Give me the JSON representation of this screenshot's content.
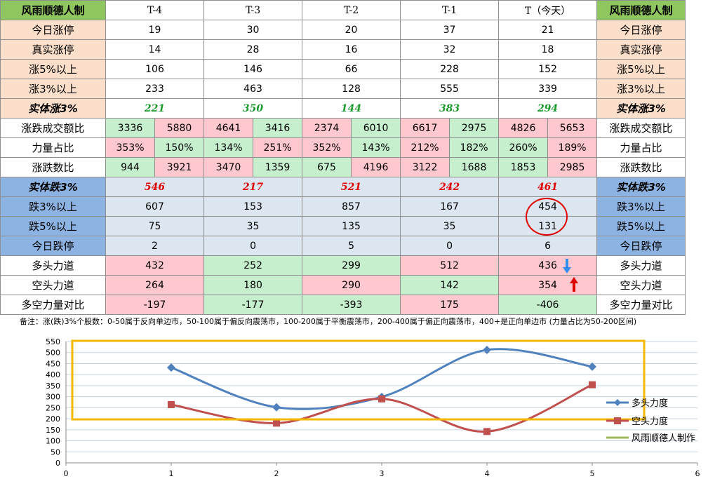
{
  "table": {
    "brand_label": "风雨顺德人制",
    "columns": [
      "T-4",
      "T-3",
      "T-2",
      "T-1",
      "T（今天）"
    ],
    "rows": {
      "limit_up": {
        "label": "今日涨停",
        "values": [
          "19",
          "30",
          "20",
          "37",
          "21"
        ]
      },
      "real_limit_up": {
        "label": "真实涨停",
        "values": [
          "14",
          "28",
          "16",
          "32",
          "18"
        ]
      },
      "up5": {
        "label": "涨5%以上",
        "values": [
          "106",
          "146",
          "66",
          "228",
          "152"
        ]
      },
      "up3": {
        "label": "涨3%以上",
        "values": [
          "233",
          "463",
          "128",
          "555",
          "339"
        ]
      },
      "body_up3": {
        "label": "实体涨3%",
        "values": [
          "221",
          "350",
          "144",
          "383",
          "294"
        ]
      },
      "turnover": {
        "label": "涨跌成交额比",
        "pairs": [
          [
            "3336",
            "5880"
          ],
          [
            "4641",
            "3416"
          ],
          [
            "2374",
            "6010"
          ],
          [
            "6617",
            "2975"
          ],
          [
            "4826",
            "5653"
          ]
        ]
      },
      "power": {
        "label": "力量占比",
        "pairs": [
          [
            "353%",
            "150%"
          ],
          [
            "134%",
            "251%"
          ],
          [
            "352%",
            "143%"
          ],
          [
            "212%",
            "182%"
          ],
          [
            "260%",
            "189%"
          ]
        ]
      },
      "count": {
        "label": "涨跌数比",
        "pairs": [
          [
            "944",
            "3921"
          ],
          [
            "3470",
            "1359"
          ],
          [
            "675",
            "4196"
          ],
          [
            "3122",
            "1688"
          ],
          [
            "1853",
            "2985"
          ]
        ]
      },
      "body_down3": {
        "label": "实体跌3%",
        "values": [
          "546",
          "217",
          "521",
          "242",
          "461"
        ]
      },
      "down3": {
        "label": "跌3%以上",
        "values": [
          "607",
          "153",
          "857",
          "167",
          "454"
        ]
      },
      "down5": {
        "label": "跌5%以上",
        "values": [
          "75",
          "35",
          "135",
          "35",
          "131"
        ]
      },
      "limit_down": {
        "label": "今日跌停",
        "values": [
          "2",
          "0",
          "5",
          "0",
          "6"
        ]
      },
      "bull": {
        "label": "多头力道",
        "values": [
          "432",
          "252",
          "299",
          "512",
          "436"
        ]
      },
      "bear": {
        "label": "空头力道",
        "values": [
          "264",
          "180",
          "290",
          "142",
          "354"
        ]
      },
      "diff": {
        "label": "多空力量对比",
        "values": [
          "-197",
          "-177",
          "-393",
          "175",
          "-406"
        ]
      }
    },
    "note": "备注：涨(跌)3%个股数：0-50属于反向单边市，50-100属于偏反向震荡市，100-200属于平衡震荡市，200-400属于偏正向震荡市，400+是正向单边市 (力量占比为50-200区间)"
  },
  "colors": {
    "bull_line": "#4f81bd",
    "bear_line": "#c0504d",
    "third_series": "#9bbb59",
    "highlight_box": "#f5b800"
  },
  "chart_data": {
    "type": "line",
    "xlim": [
      0,
      6
    ],
    "ylim": [
      0,
      550
    ],
    "x_ticks": [
      "0",
      "1",
      "2",
      "3",
      "4",
      "5",
      "6"
    ],
    "y_ticks": [
      "0",
      "50",
      "100",
      "150",
      "200",
      "250",
      "300",
      "350",
      "400",
      "450",
      "500",
      "550"
    ],
    "grid": true,
    "legend_position": "right",
    "series": [
      {
        "name": "多头力度",
        "x": [
          1,
          2,
          3,
          4,
          5
        ],
        "values": [
          432,
          252,
          299,
          512,
          436
        ]
      },
      {
        "name": "空头力度",
        "x": [
          1,
          2,
          3,
          4,
          5
        ],
        "values": [
          264,
          180,
          290,
          142,
          354
        ]
      },
      {
        "name": "风雨顺德人制作",
        "x": [],
        "values": []
      }
    ]
  }
}
